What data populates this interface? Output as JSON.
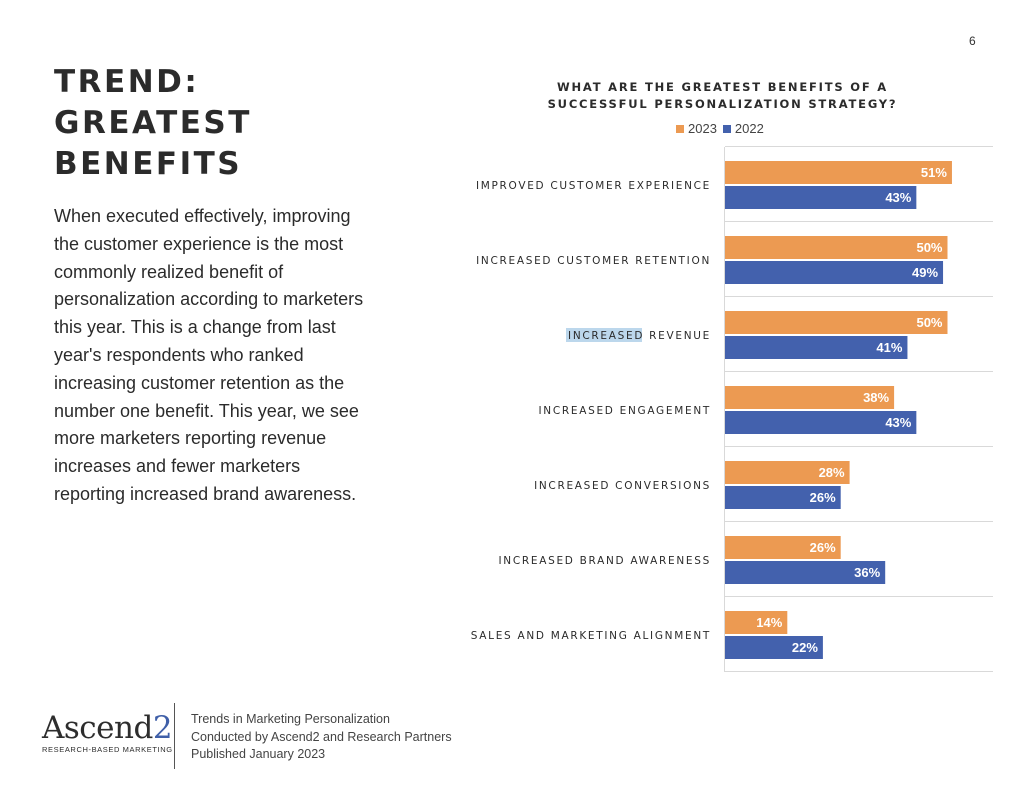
{
  "page_number": "6",
  "left_panel": {
    "title_lines": [
      "TREND:",
      "GREATEST",
      "BENEFITS"
    ],
    "body": "When executed effectively, improving the customer experience is the most commonly realized benefit of personalization according to marketers this year. This is a change from last year's respondents who ranked increasing customer retention as the number one benefit. This year, we see more marketers reporting revenue increases and fewer marketers reporting increased brand awareness."
  },
  "footer": {
    "logo_main": "Ascend",
    "logo_num": "2",
    "logo_tagline": "RESEARCH-BASED MARKETING",
    "lines": [
      "Trends in Marketing Personalization",
      "Conducted by Ascend2 and Research Partners",
      "Published January 2023"
    ]
  },
  "colors": {
    "series_2023": "#ec9a52",
    "series_2022": "#4361ad",
    "grid": "#d9d9d9"
  },
  "chart_data": {
    "type": "bar",
    "orientation": "horizontal",
    "title_lines": [
      "WHAT ARE THE GREATEST BENEFITS OF A",
      "SUCCESSFUL PERSONALIZATION STRATEGY?"
    ],
    "categories": [
      "IMPROVED CUSTOMER EXPERIENCE",
      "INCREASED CUSTOMER RETENTION",
      "INCREASED REVENUE",
      "INCREASED ENGAGEMENT",
      "INCREASED CONVERSIONS",
      "INCREASED BRAND AWARENESS",
      "SALES AND MARKETING ALIGNMENT"
    ],
    "series": [
      {
        "name": "2023",
        "values": [
          51,
          50,
          50,
          38,
          28,
          26,
          14
        ]
      },
      {
        "name": "2022",
        "values": [
          43,
          49,
          41,
          43,
          26,
          36,
          22
        ]
      }
    ],
    "value_suffix": "%",
    "legend_position": "top",
    "xlim": [
      0,
      60
    ],
    "grid": true
  }
}
